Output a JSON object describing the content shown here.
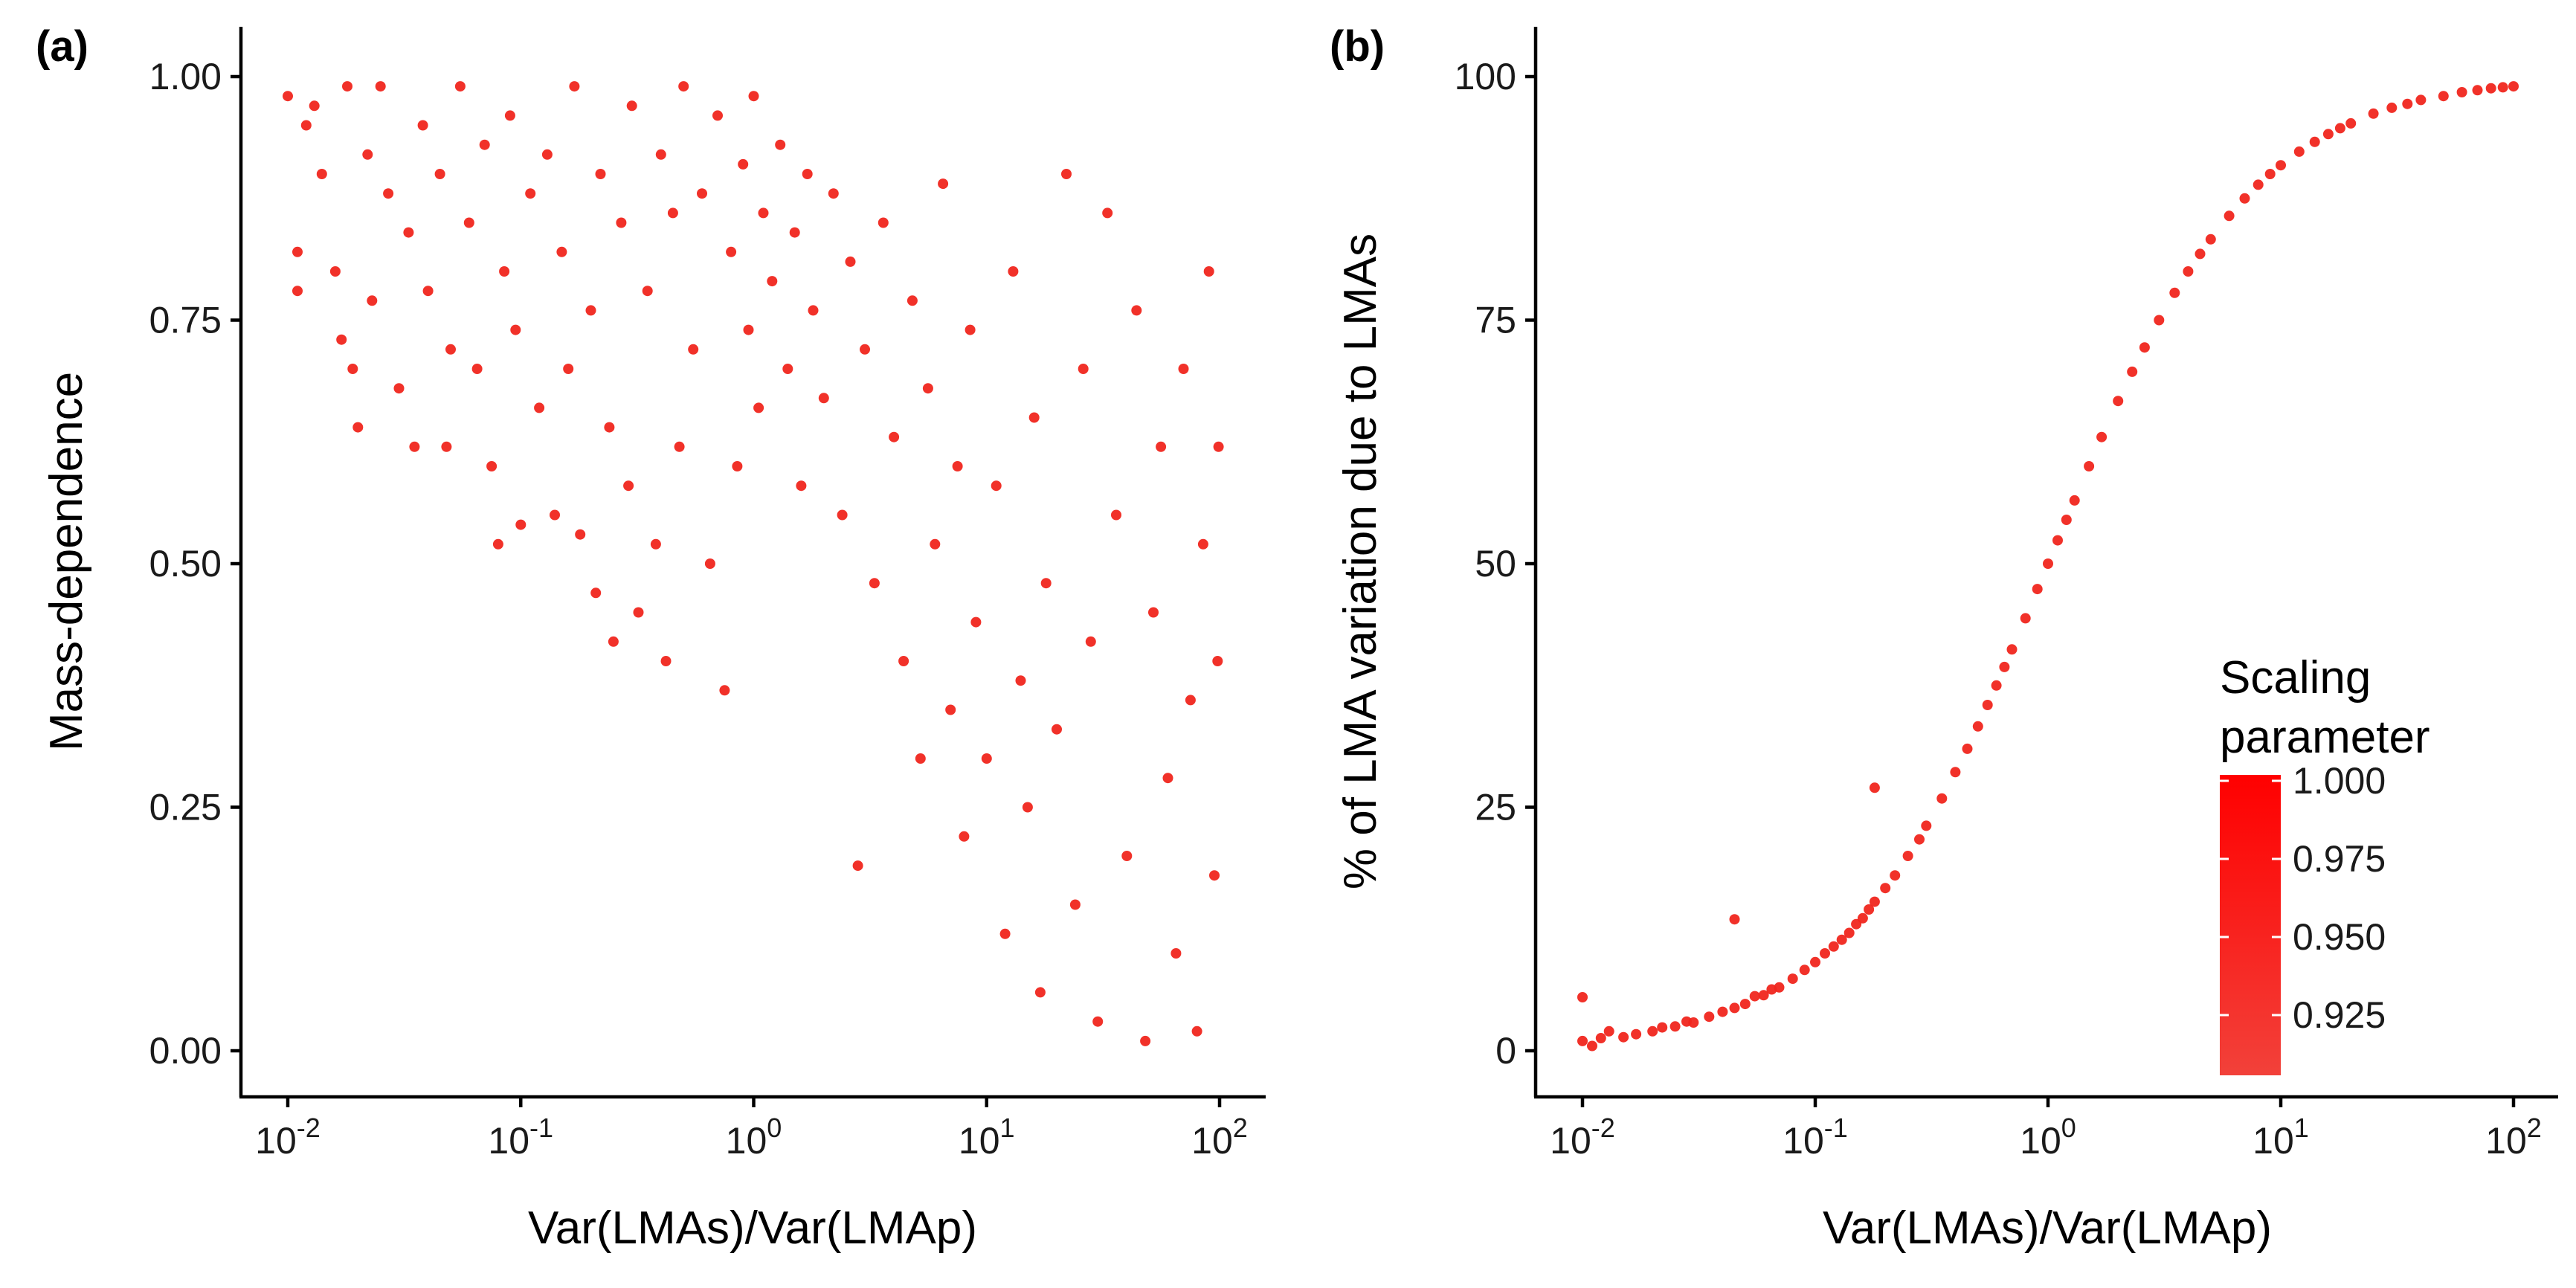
{
  "chart_data": [
    {
      "panel": "(a)",
      "type": "scatter",
      "xlabel": "Var(LMAs)/Var(LMAp)",
      "ylabel": "Mass-dependence",
      "xscale": "log10",
      "xlim": [
        0.01,
        100
      ],
      "ylim": [
        0,
        1
      ],
      "xticks": [
        {
          "value": 0.01,
          "base": "10",
          "exp": "-2"
        },
        {
          "value": 0.1,
          "base": "10",
          "exp": "-1"
        },
        {
          "value": 1,
          "base": "10",
          "exp": "0"
        },
        {
          "value": 10,
          "base": "10",
          "exp": "1"
        },
        {
          "value": 100,
          "base": "10",
          "exp": "2"
        }
      ],
      "yticks": [
        {
          "value": 0,
          "label": "0.00"
        },
        {
          "value": 0.25,
          "label": "0.25"
        },
        {
          "value": 0.5,
          "label": "0.50"
        },
        {
          "value": 0.75,
          "label": "0.75"
        },
        {
          "value": 1,
          "label": "1.00"
        }
      ],
      "grid": false,
      "point_color": "#f0261e",
      "points": [
        [
          0.01,
          0.98
        ],
        [
          0.011,
          0.78
        ],
        [
          0.011,
          0.82
        ],
        [
          0.012,
          0.95
        ],
        [
          0.013,
          0.97
        ],
        [
          0.014,
          0.9
        ],
        [
          0.016,
          0.8
        ],
        [
          0.017,
          0.73
        ],
        [
          0.018,
          0.99
        ],
        [
          0.019,
          0.7
        ],
        [
          0.02,
          0.64
        ],
        [
          0.022,
          0.92
        ],
        [
          0.023,
          0.77
        ],
        [
          0.025,
          0.99
        ],
        [
          0.027,
          0.88
        ],
        [
          0.03,
          0.68
        ],
        [
          0.033,
          0.84
        ],
        [
          0.035,
          0.62
        ],
        [
          0.038,
          0.95
        ],
        [
          0.04,
          0.78
        ],
        [
          0.045,
          0.9
        ],
        [
          0.048,
          0.62
        ],
        [
          0.05,
          0.72
        ],
        [
          0.055,
          0.99
        ],
        [
          0.06,
          0.85
        ],
        [
          0.065,
          0.7
        ],
        [
          0.07,
          0.93
        ],
        [
          0.075,
          0.6
        ],
        [
          0.08,
          0.52
        ],
        [
          0.085,
          0.8
        ],
        [
          0.09,
          0.96
        ],
        [
          0.095,
          0.74
        ],
        [
          0.1,
          0.54
        ],
        [
          0.11,
          0.88
        ],
        [
          0.12,
          0.66
        ],
        [
          0.13,
          0.92
        ],
        [
          0.14,
          0.55
        ],
        [
          0.15,
          0.82
        ],
        [
          0.16,
          0.7
        ],
        [
          0.17,
          0.99
        ],
        [
          0.18,
          0.53
        ],
        [
          0.2,
          0.76
        ],
        [
          0.21,
          0.47
        ],
        [
          0.22,
          0.9
        ],
        [
          0.24,
          0.64
        ],
        [
          0.25,
          0.42
        ],
        [
          0.27,
          0.85
        ],
        [
          0.29,
          0.58
        ],
        [
          0.3,
          0.97
        ],
        [
          0.32,
          0.45
        ],
        [
          0.35,
          0.78
        ],
        [
          0.38,
          0.52
        ],
        [
          0.4,
          0.92
        ],
        [
          0.42,
          0.4
        ],
        [
          0.45,
          0.86
        ],
        [
          0.48,
          0.62
        ],
        [
          0.5,
          0.99
        ],
        [
          0.55,
          0.72
        ],
        [
          0.6,
          0.88
        ],
        [
          0.65,
          0.5
        ],
        [
          0.7,
          0.96
        ],
        [
          0.75,
          0.37
        ],
        [
          0.8,
          0.82
        ],
        [
          0.85,
          0.6
        ],
        [
          0.9,
          0.91
        ],
        [
          0.95,
          0.74
        ],
        [
          1.0,
          0.98
        ],
        [
          1.05,
          0.66
        ],
        [
          1.1,
          0.86
        ],
        [
          1.2,
          0.79
        ],
        [
          1.3,
          0.93
        ],
        [
          1.4,
          0.7
        ],
        [
          1.5,
          0.84
        ],
        [
          1.6,
          0.58
        ],
        [
          1.7,
          0.9
        ],
        [
          1.8,
          0.76
        ],
        [
          2.0,
          0.67
        ],
        [
          2.2,
          0.88
        ],
        [
          2.4,
          0.55
        ],
        [
          2.6,
          0.81
        ],
        [
          2.8,
          0.19
        ],
        [
          3.0,
          0.72
        ],
        [
          3.3,
          0.48
        ],
        [
          3.6,
          0.85
        ],
        [
          4.0,
          0.63
        ],
        [
          4.4,
          0.4
        ],
        [
          4.8,
          0.77
        ],
        [
          5.2,
          0.3
        ],
        [
          5.6,
          0.68
        ],
        [
          6.0,
          0.52
        ],
        [
          6.5,
          0.89
        ],
        [
          7.0,
          0.35
        ],
        [
          7.5,
          0.6
        ],
        [
          8.0,
          0.22
        ],
        [
          8.5,
          0.74
        ],
        [
          9.0,
          0.44
        ],
        [
          10.0,
          0.3
        ],
        [
          11.0,
          0.58
        ],
        [
          12.0,
          0.12
        ],
        [
          13.0,
          0.8
        ],
        [
          14.0,
          0.38
        ],
        [
          15.0,
          0.25
        ],
        [
          16.0,
          0.65
        ],
        [
          17.0,
          0.06
        ],
        [
          18.0,
          0.48
        ],
        [
          20.0,
          0.33
        ],
        [
          22.0,
          0.9
        ],
        [
          24.0,
          0.15
        ],
        [
          26.0,
          0.7
        ],
        [
          28.0,
          0.42
        ],
        [
          30.0,
          0.03
        ],
        [
          33.0,
          0.86
        ],
        [
          36.0,
          0.55
        ],
        [
          40.0,
          0.2
        ],
        [
          44.0,
          0.76
        ],
        [
          48.0,
          0.01
        ],
        [
          52.0,
          0.45
        ],
        [
          56.0,
          0.62
        ],
        [
          60.0,
          0.28
        ],
        [
          65.0,
          0.1
        ],
        [
          70.0,
          0.7
        ],
        [
          75.0,
          0.36
        ],
        [
          80.0,
          0.02
        ],
        [
          85.0,
          0.52
        ],
        [
          90.0,
          0.8
        ],
        [
          95.0,
          0.18
        ],
        [
          98.0,
          0.4
        ],
        [
          99.0,
          0.62
        ]
      ]
    },
    {
      "panel": "(b)",
      "type": "scatter",
      "xlabel": "Var(LMAs)/Var(LMAp)",
      "ylabel": "% of LMA variation due to LMAs",
      "xscale": "log10",
      "xlim": [
        0.01,
        100
      ],
      "ylim": [
        0,
        100
      ],
      "xticks": [
        {
          "value": 0.01,
          "base": "10",
          "exp": "-2"
        },
        {
          "value": 0.1,
          "base": "10",
          "exp": "-1"
        },
        {
          "value": 1,
          "base": "10",
          "exp": "0"
        },
        {
          "value": 10,
          "base": "10",
          "exp": "1"
        },
        {
          "value": 100,
          "base": "10",
          "exp": "2"
        }
      ],
      "yticks": [
        {
          "value": 0,
          "label": "0"
        },
        {
          "value": 25,
          "label": "25"
        },
        {
          "value": 50,
          "label": "50"
        },
        {
          "value": 75,
          "label": "75"
        },
        {
          "value": 100,
          "label": "100"
        }
      ],
      "grid": false,
      "point_color": "#f0261e",
      "points": [
        [
          0.01,
          1.0
        ],
        [
          0.01,
          5.5
        ],
        [
          0.011,
          0.5
        ],
        [
          0.012,
          1.3
        ],
        [
          0.013,
          2.0
        ],
        [
          0.015,
          1.4
        ],
        [
          0.017,
          1.7
        ],
        [
          0.02,
          2.0
        ],
        [
          0.022,
          2.4
        ],
        [
          0.025,
          2.5
        ],
        [
          0.028,
          3.0
        ],
        [
          0.03,
          2.9
        ],
        [
          0.035,
          3.5
        ],
        [
          0.04,
          4.0
        ],
        [
          0.045,
          4.4
        ],
        [
          0.045,
          13.5
        ],
        [
          0.05,
          4.8
        ],
        [
          0.055,
          5.6
        ],
        [
          0.06,
          5.7
        ],
        [
          0.065,
          6.3
        ],
        [
          0.07,
          6.5
        ],
        [
          0.08,
          7.4
        ],
        [
          0.09,
          8.3
        ],
        [
          0.1,
          9.1
        ],
        [
          0.11,
          10.0
        ],
        [
          0.12,
          10.7
        ],
        [
          0.13,
          11.4
        ],
        [
          0.14,
          12.1
        ],
        [
          0.15,
          13.0
        ],
        [
          0.16,
          13.6
        ],
        [
          0.17,
          14.5
        ],
        [
          0.18,
          15.3
        ],
        [
          0.18,
          27.0
        ],
        [
          0.2,
          16.7
        ],
        [
          0.22,
          18.0
        ],
        [
          0.25,
          20.0
        ],
        [
          0.28,
          21.7
        ],
        [
          0.3,
          23.1
        ],
        [
          0.35,
          25.9
        ],
        [
          0.4,
          28.6
        ],
        [
          0.45,
          31.0
        ],
        [
          0.5,
          33.3
        ],
        [
          0.55,
          35.5
        ],
        [
          0.6,
          37.5
        ],
        [
          0.65,
          39.4
        ],
        [
          0.7,
          41.2
        ],
        [
          0.8,
          44.4
        ],
        [
          0.9,
          47.4
        ],
        [
          1.0,
          50.0
        ],
        [
          1.1,
          52.4
        ],
        [
          1.2,
          54.5
        ],
        [
          1.3,
          56.5
        ],
        [
          1.5,
          60.0
        ],
        [
          1.7,
          63.0
        ],
        [
          2.0,
          66.7
        ],
        [
          2.3,
          69.7
        ],
        [
          2.6,
          72.2
        ],
        [
          3.0,
          75.0
        ],
        [
          3.5,
          77.8
        ],
        [
          4.0,
          80.0
        ],
        [
          4.5,
          81.8
        ],
        [
          5.0,
          83.3
        ],
        [
          6.0,
          85.7
        ],
        [
          7.0,
          87.5
        ],
        [
          8.0,
          88.9
        ],
        [
          9.0,
          90.0
        ],
        [
          10.0,
          90.9
        ],
        [
          12.0,
          92.3
        ],
        [
          14.0,
          93.3
        ],
        [
          16.0,
          94.1
        ],
        [
          18.0,
          94.7
        ],
        [
          20.0,
          95.2
        ],
        [
          25.0,
          96.2
        ],
        [
          30.0,
          96.8
        ],
        [
          35.0,
          97.2
        ],
        [
          40.0,
          97.6
        ],
        [
          50.0,
          98.0
        ],
        [
          60.0,
          98.4
        ],
        [
          70.0,
          98.6
        ],
        [
          80.0,
          98.8
        ],
        [
          90.0,
          98.9
        ],
        [
          100.0,
          99.0
        ]
      ]
    }
  ],
  "legend": {
    "title_line1": "Scaling",
    "title_line2": "parameter",
    "labels": [
      "1.000",
      "0.975",
      "0.950",
      "0.925"
    ],
    "color_high": "#ff0000",
    "color_low": "#f2413a",
    "placement": "bottom-right of panel (b)"
  }
}
